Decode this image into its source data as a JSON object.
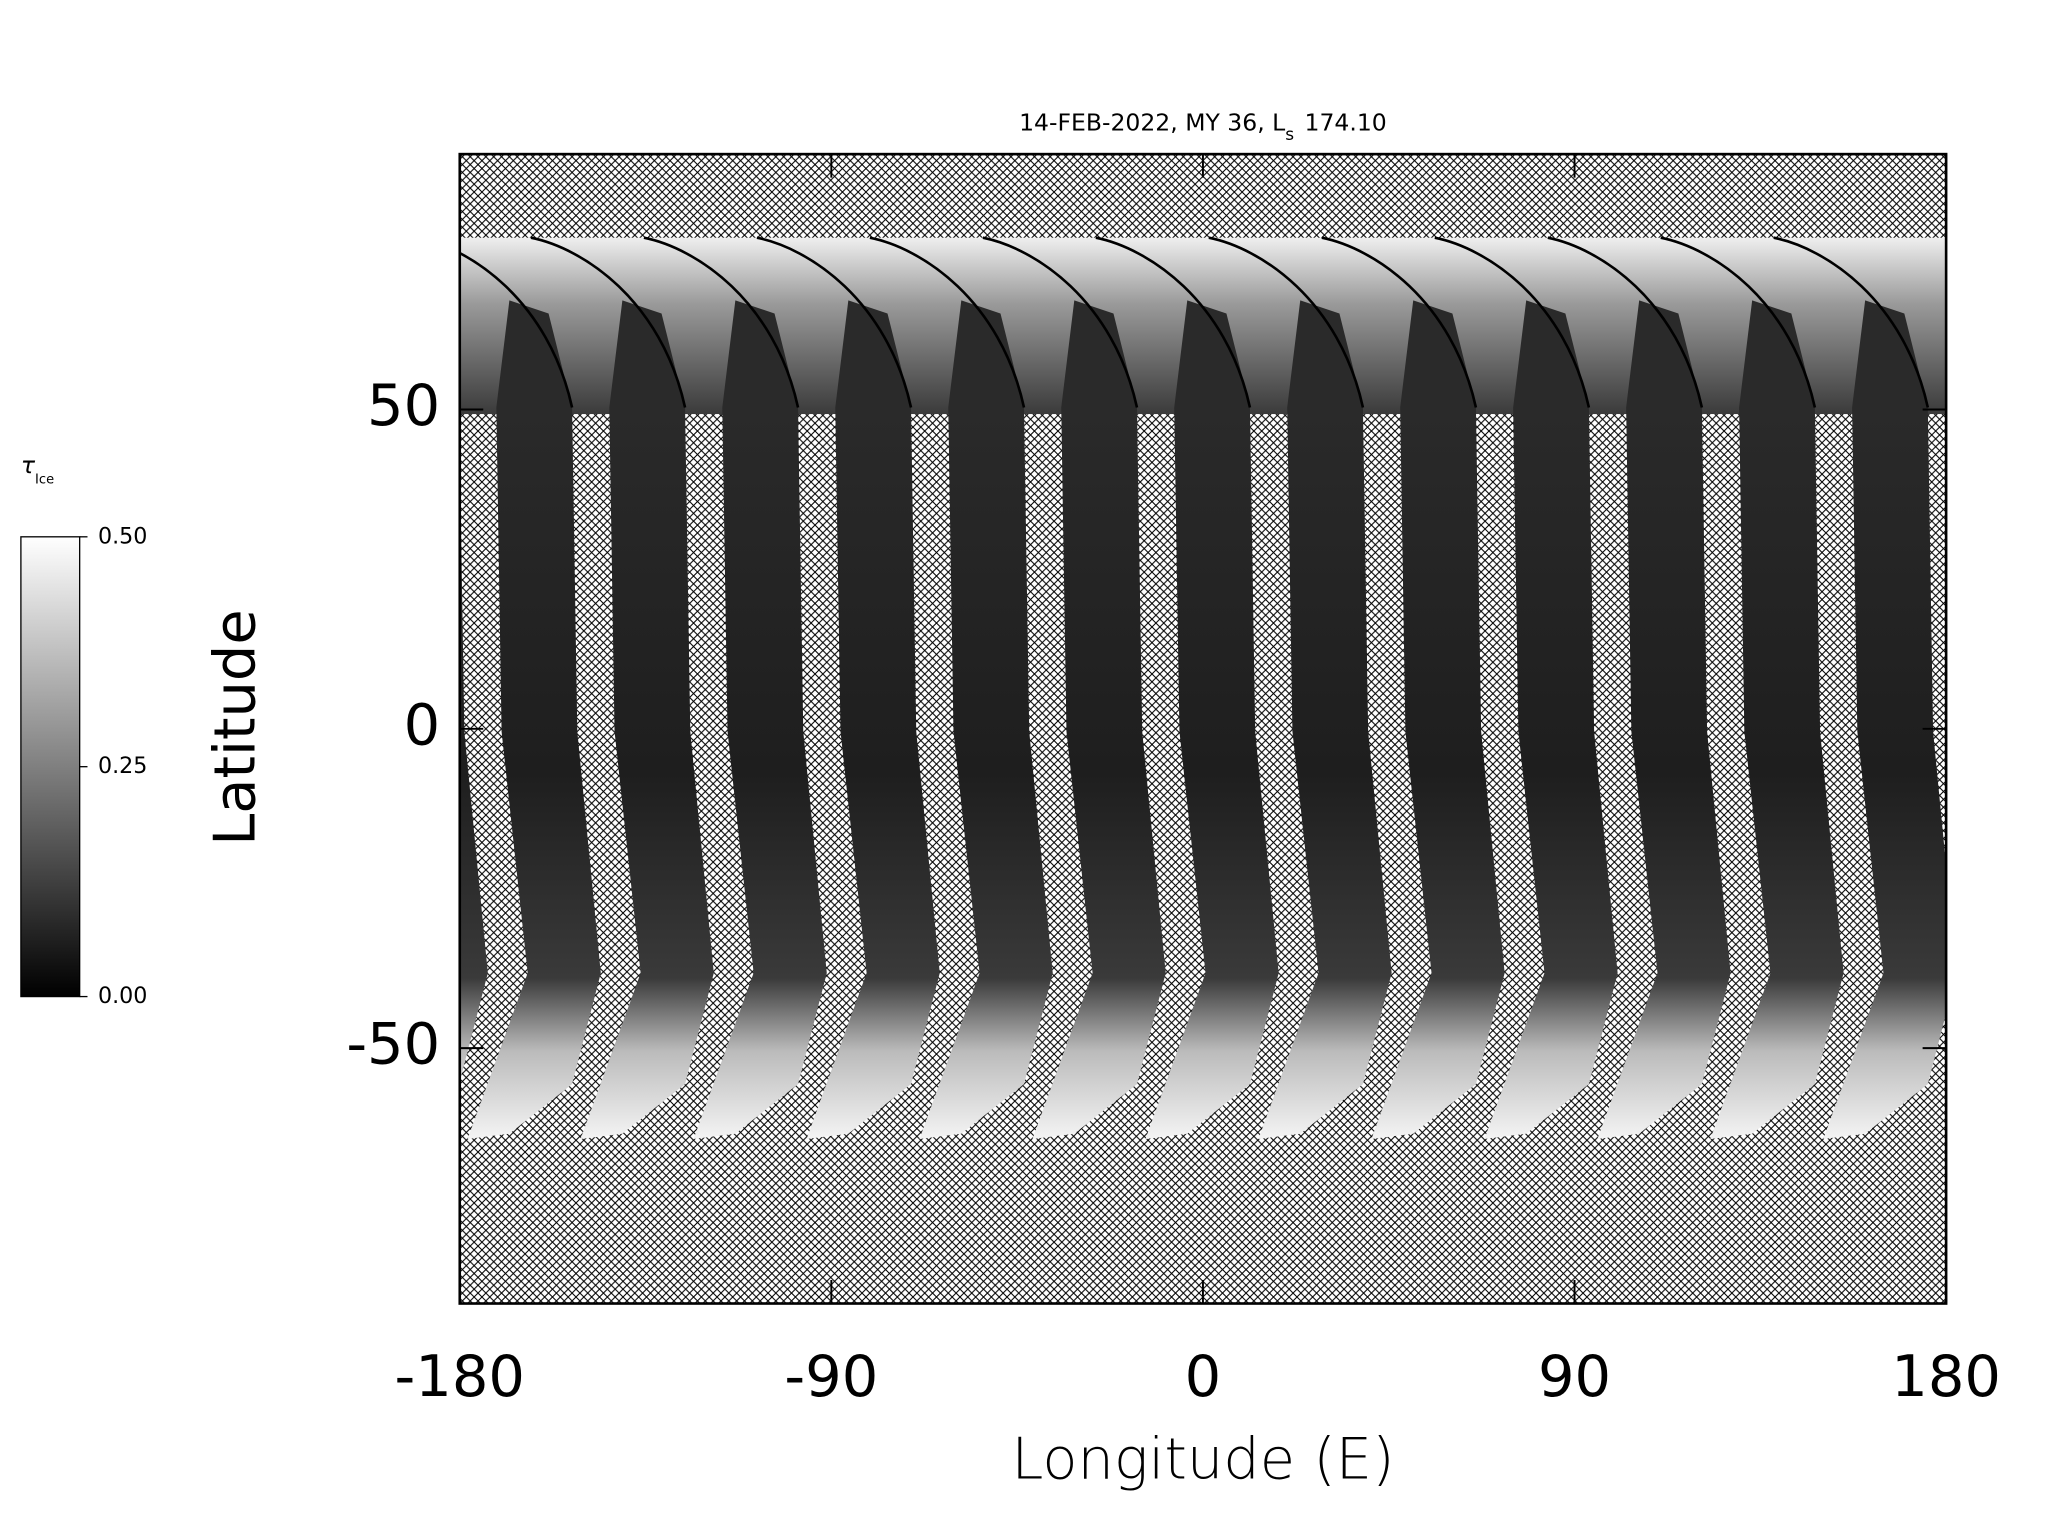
{
  "chart_data": {
    "type": "map",
    "title": {
      "text": "14-FEB-2022, MY 36,  L",
      "subscript": "s",
      "value": "174.10"
    },
    "xlabel": "Longitude (E)",
    "ylabel": "Latitude",
    "xlim": [
      -180,
      180
    ],
    "ylim": [
      -90,
      90
    ],
    "xticks": [
      -180,
      -90,
      0,
      90,
      180
    ],
    "yticks": [
      -50,
      0,
      50
    ],
    "colorbar": {
      "label": "τ",
      "label_subscript": "Ice",
      "lim": [
        0,
        0.5
      ],
      "ticks": [
        {
          "value": 0,
          "label": "0.00"
        },
        {
          "value": 0.25,
          "label": "0.25"
        },
        {
          "value": 0.5,
          "label": "0.50"
        }
      ],
      "colors": [
        "#000000",
        "#ffffff"
      ]
    }
  }
}
